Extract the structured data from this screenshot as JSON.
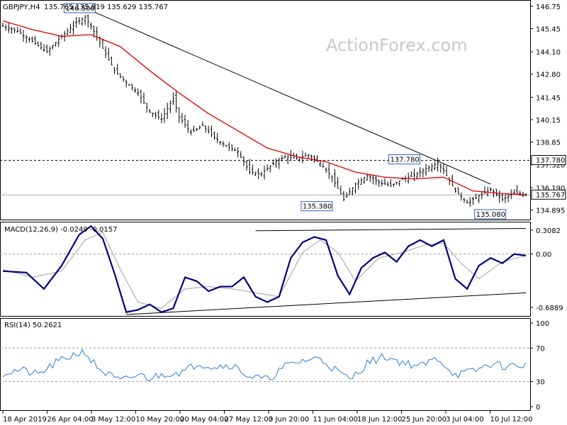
{
  "chart_data": [
    {
      "type": "candlestick",
      "title": "GBPJPY,H4",
      "ohlc_header": "135.765 135.819 135.629 135.767",
      "last_price": "135.767",
      "ylim": [
        134.5,
        146.95
      ],
      "y_ticks": [
        "146.75",
        "145.45",
        "144.10",
        "142.80",
        "141.45",
        "140.15",
        "138.85",
        "137.520",
        "136.190",
        "134.895"
      ],
      "annotations": [
        "146.500",
        "137.780",
        "135.380",
        "135.080"
      ],
      "horizontal_level": "137.780",
      "x_ticks": [
        "18 Apr 2019",
        "26 Apr 04:00",
        "3 May 12:00",
        "10 May 20:00",
        "20 May 04:00",
        "27 May 12:00",
        "3 Jun 20:00",
        "11 Jun 04:00",
        "18 Jun 12:00",
        "25 Jun 20:00",
        "3 Jul 04:00",
        "10 Jul 12:00"
      ],
      "price_path": [
        [
          0,
          145.6
        ],
        [
          5,
          145.3
        ],
        [
          10,
          144.7
        ],
        [
          15,
          144.1
        ],
        [
          20,
          145.0
        ],
        [
          25,
          145.8
        ],
        [
          28,
          146.1
        ],
        [
          30,
          145.6
        ],
        [
          34,
          144.3
        ],
        [
          38,
          143.0
        ],
        [
          42,
          142.3
        ],
        [
          46,
          141.7
        ],
        [
          50,
          140.6
        ],
        [
          54,
          140.2
        ],
        [
          58,
          141.4
        ],
        [
          60,
          140.3
        ],
        [
          64,
          139.4
        ],
        [
          68,
          139.8
        ],
        [
          72,
          139.1
        ],
        [
          76,
          138.6
        ],
        [
          80,
          138.3
        ],
        [
          84,
          137.1
        ],
        [
          88,
          137.0
        ],
        [
          92,
          137.6
        ],
        [
          96,
          138.0
        ],
        [
          100,
          137.9
        ],
        [
          104,
          138.1
        ],
        [
          108,
          137.6
        ],
        [
          112,
          136.8
        ],
        [
          116,
          135.5
        ],
        [
          120,
          136.4
        ],
        [
          124,
          136.9
        ],
        [
          128,
          136.5
        ],
        [
          132,
          136.3
        ],
        [
          136,
          136.7
        ],
        [
          140,
          136.9
        ],
        [
          144,
          137.3
        ],
        [
          148,
          137.6
        ],
        [
          150,
          137.2
        ],
        [
          154,
          136.0
        ],
        [
          158,
          135.3
        ],
        [
          162,
          135.7
        ],
        [
          166,
          136.1
        ],
        [
          170,
          135.5
        ],
        [
          174,
          135.9
        ],
        [
          178,
          135.8
        ]
      ],
      "ma_path": [
        [
          0,
          145.9
        ],
        [
          10,
          145.4
        ],
        [
          20,
          145.0
        ],
        [
          30,
          145.1
        ],
        [
          40,
          144.4
        ],
        [
          50,
          143.0
        ],
        [
          60,
          141.7
        ],
        [
          70,
          140.5
        ],
        [
          80,
          139.5
        ],
        [
          90,
          138.5
        ],
        [
          100,
          138.0
        ],
        [
          110,
          137.7
        ],
        [
          120,
          137.1
        ],
        [
          130,
          136.8
        ],
        [
          140,
          136.7
        ],
        [
          150,
          136.8
        ],
        [
          160,
          136.0
        ],
        [
          170,
          135.85
        ],
        [
          178,
          135.77
        ]
      ],
      "trendline_from": [
        30,
        146.5
      ],
      "trendline_to": [
        166,
        136.4
      ]
    },
    {
      "type": "line",
      "title": "MACD(12,26,9) -0.0249 -0.0157",
      "y_ticks": [
        "0.3082",
        "0.00",
        "-0.6889"
      ],
      "ylim": [
        -0.78,
        0.38
      ],
      "macd": [
        [
          0,
          -0.22
        ],
        [
          8,
          -0.24
        ],
        [
          14,
          -0.45
        ],
        [
          20,
          -0.15
        ],
        [
          26,
          0.25
        ],
        [
          30,
          0.36
        ],
        [
          34,
          0.2
        ],
        [
          38,
          -0.25
        ],
        [
          42,
          -0.75
        ],
        [
          46,
          -0.72
        ],
        [
          50,
          -0.65
        ],
        [
          54,
          -0.75
        ],
        [
          58,
          -0.7
        ],
        [
          62,
          -0.3
        ],
        [
          66,
          -0.35
        ],
        [
          70,
          -0.48
        ],
        [
          74,
          -0.42
        ],
        [
          78,
          -0.42
        ],
        [
          82,
          -0.3
        ],
        [
          86,
          -0.55
        ],
        [
          90,
          -0.62
        ],
        [
          94,
          -0.55
        ],
        [
          98,
          -0.05
        ],
        [
          102,
          0.15
        ],
        [
          106,
          0.22
        ],
        [
          110,
          0.18
        ],
        [
          114,
          -0.28
        ],
        [
          118,
          -0.52
        ],
        [
          122,
          -0.18
        ],
        [
          126,
          -0.05
        ],
        [
          130,
          0.02
        ],
        [
          134,
          -0.1
        ],
        [
          138,
          0.1
        ],
        [
          142,
          0.18
        ],
        [
          146,
          0.1
        ],
        [
          150,
          0.18
        ],
        [
          154,
          -0.32
        ],
        [
          158,
          -0.45
        ],
        [
          162,
          -0.15
        ],
        [
          166,
          -0.05
        ],
        [
          170,
          -0.12
        ],
        [
          174,
          0.0
        ],
        [
          178,
          -0.02
        ]
      ],
      "signal": [
        [
          0,
          -0.2
        ],
        [
          10,
          -0.3
        ],
        [
          20,
          -0.22
        ],
        [
          28,
          0.18
        ],
        [
          34,
          0.28
        ],
        [
          40,
          -0.2
        ],
        [
          46,
          -0.62
        ],
        [
          54,
          -0.7
        ],
        [
          62,
          -0.45
        ],
        [
          70,
          -0.42
        ],
        [
          78,
          -0.45
        ],
        [
          86,
          -0.5
        ],
        [
          94,
          -0.55
        ],
        [
          102,
          0.02
        ],
        [
          108,
          0.18
        ],
        [
          114,
          0.02
        ],
        [
          120,
          -0.35
        ],
        [
          128,
          -0.05
        ],
        [
          136,
          0.02
        ],
        [
          144,
          0.12
        ],
        [
          150,
          0.14
        ],
        [
          156,
          -0.12
        ],
        [
          162,
          -0.32
        ],
        [
          170,
          -0.1
        ],
        [
          178,
          -0.02
        ]
      ],
      "trendline_upper_from": [
        86,
        0.3
      ],
      "trendline_upper_to": [
        178,
        0.33
      ],
      "trendline_lower_from": [
        42,
        -0.78
      ],
      "trendline_lower_to": [
        178,
        -0.5
      ]
    },
    {
      "type": "line",
      "title": "RSI(14) 50.2621",
      "y_ticks": [
        "100",
        "70",
        "30",
        "0"
      ],
      "ylim": [
        0,
        100
      ],
      "levels": [
        70,
        30
      ],
      "rsi": [
        [
          0,
          40
        ],
        [
          6,
          44
        ],
        [
          12,
          38
        ],
        [
          18,
          52
        ],
        [
          24,
          62
        ],
        [
          28,
          66
        ],
        [
          30,
          55
        ],
        [
          34,
          42
        ],
        [
          40,
          30
        ],
        [
          46,
          38
        ],
        [
          50,
          34
        ],
        [
          56,
          40
        ],
        [
          62,
          42
        ],
        [
          66,
          52
        ],
        [
          72,
          48
        ],
        [
          78,
          50
        ],
        [
          84,
          36
        ],
        [
          90,
          32
        ],
        [
          96,
          48
        ],
        [
          102,
          55
        ],
        [
          108,
          58
        ],
        [
          114,
          42
        ],
        [
          118,
          32
        ],
        [
          124,
          52
        ],
        [
          130,
          60
        ],
        [
          136,
          53
        ],
        [
          142,
          48
        ],
        [
          148,
          58
        ],
        [
          154,
          38
        ],
        [
          160,
          42
        ],
        [
          166,
          51
        ],
        [
          172,
          48
        ],
        [
          178,
          50
        ]
      ]
    }
  ],
  "watermark": "ActionForex.com"
}
